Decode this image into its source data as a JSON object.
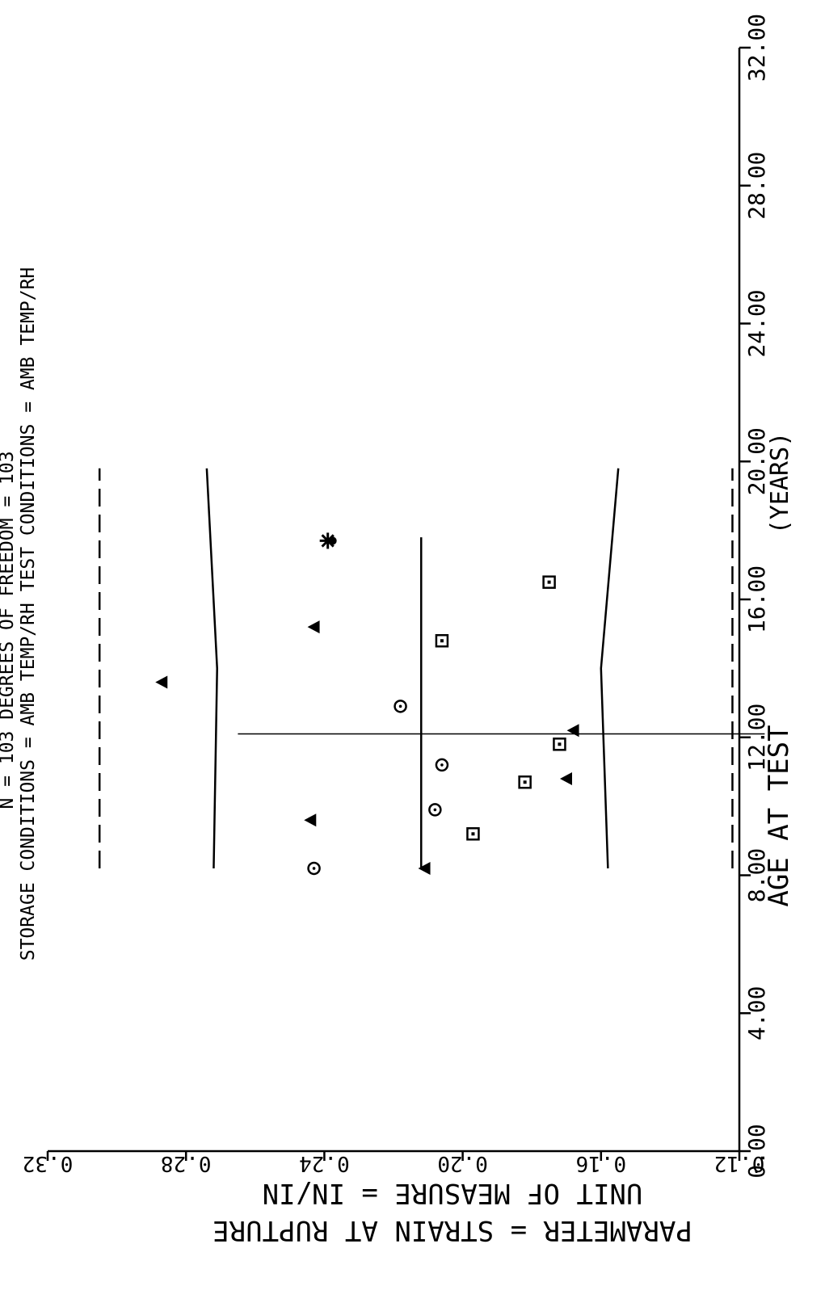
{
  "header": {
    "line1": "N =   103     DEGREES OF FREEDOM =   103",
    "line2": "STORAGE CONDITIONS = AMB TEMP/RH     TEST CONDITIONS = AMB TEMP/RH"
  },
  "footer": {
    "parameter": "PARAMETER  =  STRAIN AT RUPTURE",
    "unit": "UNIT OF MEASURE  =  IN/IN"
  },
  "chart_data": {
    "type": "scatter",
    "title": "",
    "xlabel": "AGE AT TEST",
    "xlabel_unit": "(YEARS)",
    "ylabel": "",
    "xlim": [
      0,
      32
    ],
    "ylim": [
      0.12,
      0.32
    ],
    "xticks": [
      "0.00",
      "4.00",
      "8.00",
      "12.00",
      "16.00",
      "20.00",
      "24.00",
      "28.00",
      "32.00"
    ],
    "yticks": [
      "0.12",
      "0.16",
      "0.20",
      "0.24",
      "0.28",
      "0.32"
    ],
    "xtick_values": [
      0,
      4,
      8,
      12,
      16,
      20,
      24,
      28,
      32
    ],
    "ytick_values": [
      0.12,
      0.16,
      0.2,
      0.24,
      0.28,
      0.32
    ],
    "series": [
      {
        "marker": "circle-dot",
        "points": [
          [
            8.2,
            0.243
          ],
          [
            9.9,
            0.208
          ],
          [
            11.2,
            0.206
          ],
          [
            12.9,
            0.218
          ]
        ]
      },
      {
        "marker": "square-dot",
        "points": [
          [
            9.2,
            0.197
          ],
          [
            10.7,
            0.182
          ],
          [
            11.8,
            0.172
          ],
          [
            14.8,
            0.206
          ],
          [
            16.5,
            0.175
          ]
        ]
      },
      {
        "marker": "triangle",
        "points": [
          [
            8.2,
            0.211
          ],
          [
            9.6,
            0.244
          ],
          [
            10.8,
            0.17
          ],
          [
            12.2,
            0.168
          ],
          [
            13.6,
            0.287
          ],
          [
            15.2,
            0.243
          ]
        ]
      },
      {
        "marker": "star",
        "points": [
          [
            17.7,
            0.239
          ]
        ]
      }
    ],
    "fit": {
      "x_start": 8.2,
      "x_end": 17.8,
      "values": [
        0.212,
        0.212
      ]
    },
    "inner_band": {
      "x_start": 8.2,
      "x_end": 19.8,
      "upper": [
        0.272,
        0.271,
        0.274
      ],
      "lower": [
        0.158,
        0.16,
        0.155
      ]
    },
    "outer_band": {
      "x_start": 8.2,
      "x_end": 19.8,
      "upper": [
        0.305,
        0.305
      ],
      "lower": [
        0.122,
        0.122
      ]
    },
    "reference_x": 12.1,
    "reference_y_range": [
      0.115,
      0.265
    ],
    "grid": false,
    "legend": "none",
    "color": "#000000"
  }
}
